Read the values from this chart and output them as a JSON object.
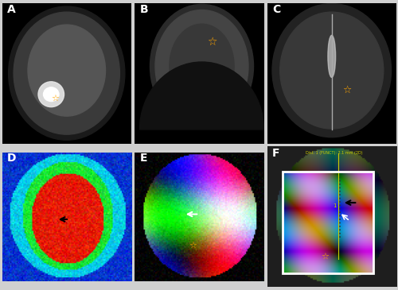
{
  "panels": [
    "A",
    "B",
    "C",
    "D",
    "E",
    "F"
  ],
  "panel_bg_colors": [
    "#000000",
    "#000000",
    "#000000",
    "#000000",
    "#000000",
    "#1a1a1a"
  ],
  "label_color": "#ffffff",
  "star_color": "#ffa500",
  "arrow_color_black": "#000000",
  "arrow_color_white": "#ffffff",
  "dist_text": "Dist. 1 (FUNCT): 2.1 mm (2D)",
  "dist_text_color": "#cccc00",
  "white_box_color": "#ffffff",
  "figure_bg": "#d0d0d0",
  "panel_label_fontsize": 10,
  "star_fontsize": 12
}
